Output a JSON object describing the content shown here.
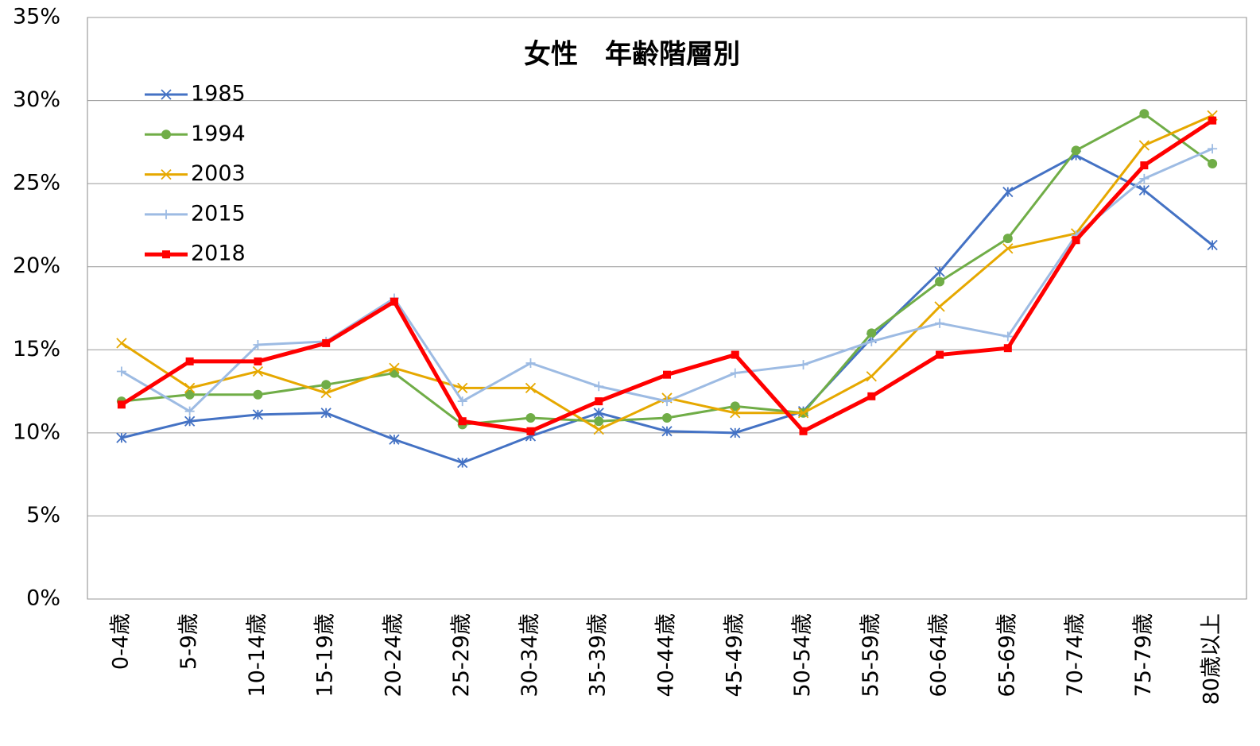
{
  "chart_data": {
    "type": "line",
    "title": "女性　年齢階層別",
    "categories": [
      "0-4歳",
      "5-9歳",
      "10-14歳",
      "15-19歳",
      "20-24歳",
      "25-29歳",
      "30-34歳",
      "35-39歳",
      "40-44歳",
      "45-49歳",
      "50-54歳",
      "55-59歳",
      "60-64歳",
      "65-69歳",
      "70-74歳",
      "75-79歳",
      "80歳以上"
    ],
    "series": [
      {
        "name": "1985",
        "color": "#4472c4",
        "marker": "asterisk",
        "values": [
          9.7,
          10.7,
          11.1,
          11.2,
          9.6,
          8.2,
          9.8,
          11.2,
          10.1,
          10.0,
          11.3,
          15.7,
          19.7,
          24.5,
          26.7,
          24.6,
          21.3
        ]
      },
      {
        "name": "1994",
        "color": "#70ad47",
        "marker": "circle",
        "values": [
          11.9,
          12.3,
          12.3,
          12.9,
          13.6,
          10.5,
          10.9,
          10.7,
          10.9,
          11.6,
          11.2,
          16.0,
          19.1,
          21.7,
          27.0,
          29.2,
          26.2
        ]
      },
      {
        "name": "2003",
        "color": "#e6a800",
        "marker": "x",
        "values": [
          15.4,
          12.7,
          13.7,
          12.4,
          13.9,
          12.7,
          12.7,
          10.2,
          12.1,
          11.2,
          11.2,
          13.4,
          17.6,
          21.1,
          22.0,
          27.3,
          29.1
        ]
      },
      {
        "name": "2015",
        "color": "#9dbbe3",
        "marker": "plus",
        "values": [
          13.7,
          11.3,
          15.3,
          15.5,
          18.1,
          11.9,
          14.2,
          12.8,
          11.9,
          13.6,
          14.1,
          15.5,
          16.6,
          15.8,
          21.9,
          25.3,
          27.1
        ]
      },
      {
        "name": "2018",
        "color": "#ff0000",
        "marker": "square",
        "values": [
          11.7,
          14.3,
          14.3,
          15.4,
          17.9,
          10.7,
          10.1,
          11.9,
          13.5,
          14.7,
          10.1,
          12.2,
          14.7,
          15.1,
          21.6,
          26.1,
          28.8
        ]
      }
    ],
    "ylim": [
      0,
      35
    ],
    "yticks": [
      {
        "value": 0,
        "label": "0%"
      },
      {
        "value": 5,
        "label": "5%"
      },
      {
        "value": 10,
        "label": "10%"
      },
      {
        "value": 15,
        "label": "15%"
      },
      {
        "value": 20,
        "label": "20%"
      },
      {
        "value": 25,
        "label": "25%"
      },
      {
        "value": 30,
        "label": "30%"
      },
      {
        "value": 35,
        "label": "35%"
      }
    ],
    "grid": true,
    "legend": "upper left"
  }
}
